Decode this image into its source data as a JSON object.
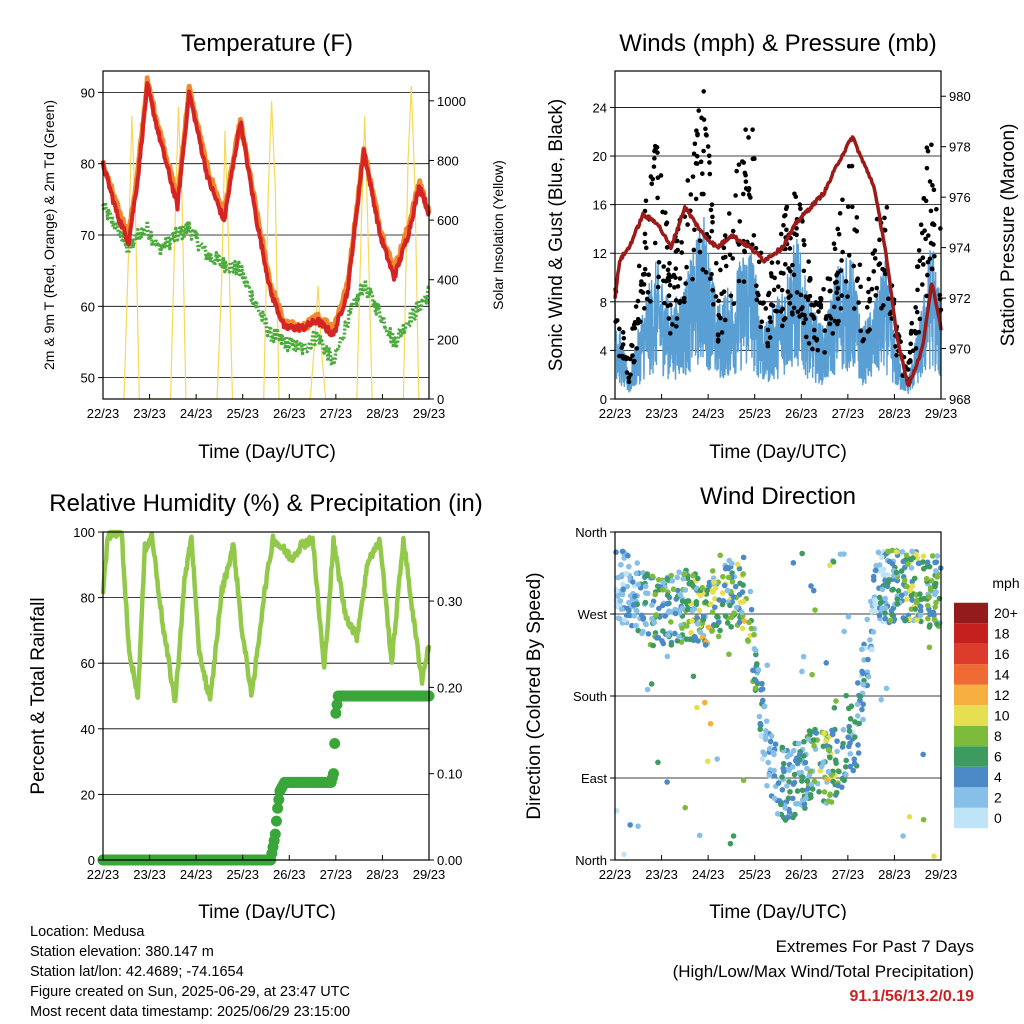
{
  "days": [
    "22/23",
    "23/23",
    "24/23",
    "25/23",
    "26/23",
    "27/23",
    "28/23",
    "29/23"
  ],
  "colors": {
    "temp2m": "#d42424",
    "temp9m": "#f08a2c",
    "dewpoint": "#4aaa3c",
    "solar": "#f5d95a",
    "gust": "#000000",
    "wind": "#5a9fd4",
    "pressure": "#9b1b1b",
    "humidity": "#92c94a",
    "precip": "#3aa63a"
  },
  "panels": {
    "temperature": {
      "title": "Temperature (F)",
      "xlabel": "Time (Day/UTC)",
      "ylabel_left": "2m & 9m T (Red, Orange) & 2m Td (Green)",
      "ylabel_right": "Solar Insolation (Yellow)",
      "left_ticks": [
        "50",
        "60",
        "70",
        "80",
        "90"
      ],
      "right_ticks": [
        "0",
        "200",
        "400",
        "600",
        "800",
        "1000"
      ]
    },
    "winds": {
      "title": "Winds (mph) & Pressure (mb)",
      "xlabel": "Time (Day/UTC)",
      "ylabel_left": "Sonic Wind & Gust (Blue, Black)",
      "ylabel_right": "Station Pressure (Maroon)",
      "left_ticks": [
        "0",
        "4",
        "8",
        "12",
        "16",
        "20",
        "24"
      ],
      "right_ticks": [
        "968",
        "970",
        "972",
        "974",
        "976",
        "978",
        "980"
      ]
    },
    "humidity": {
      "title": "Relative Humidity (%) & Precipitation (in)",
      "xlabel": "Time (Day/UTC)",
      "ylabel_left": "Percent & Total Rainfall",
      "left_ticks": [
        "0",
        "20",
        "40",
        "60",
        "80",
        "100"
      ],
      "right_ticks": [
        "0.00",
        "0.10",
        "0.20",
        "0.30"
      ]
    },
    "direction": {
      "title": "Wind Direction",
      "xlabel": "Time (Day/UTC)",
      "ylabel_left": "Direction (Colored By Speed)",
      "left_ticks": [
        "North",
        "East",
        "South",
        "West",
        "North"
      ],
      "legend_title": "mph",
      "legend_labels": [
        "0",
        "2",
        "4",
        "6",
        "8",
        "10",
        "12",
        "14",
        "16",
        "18",
        "20+"
      ],
      "legend_colors": [
        "#bfe3f7",
        "#86c0e8",
        "#4b8ac6",
        "#3e9b5f",
        "#7cbb3c",
        "#e6df52",
        "#f7b040",
        "#ef6b33",
        "#dd3b2b",
        "#c4201e",
        "#941b1b"
      ]
    }
  },
  "chart_data": [
    {
      "type": "line",
      "title": "Temperature (F)",
      "xlabel": "Time (Day/UTC)",
      "ylabel": "2m & 9m T (Red, Orange) & 2m Td (Green)",
      "y2label": "Solar Insolation (Yellow)",
      "x_days": [
        0,
        0.3,
        0.55,
        0.75,
        0.95,
        1.2,
        1.6,
        1.85,
        2.25,
        2.6,
        2.95,
        3.3,
        3.6,
        3.9,
        4.3,
        4.6,
        4.95,
        5.25,
        5.6,
        5.95,
        6.25,
        6.55,
        6.8,
        7.0
      ],
      "temp_2m": [
        80,
        73,
        69,
        78,
        91,
        84,
        74,
        90,
        78,
        72,
        86,
        72,
        62,
        57,
        57,
        58,
        56,
        62,
        82,
        70,
        64,
        70,
        77,
        73
      ],
      "temp_9m": [
        80,
        74,
        70,
        79,
        91.5,
        85,
        75,
        90.5,
        79,
        73,
        86,
        73,
        63,
        57.5,
        57,
        58.5,
        57,
        63,
        82,
        71,
        65,
        71,
        77.5,
        73
      ],
      "dewpoint_2m": [
        74,
        71,
        68,
        70,
        71,
        68,
        70,
        71,
        67,
        66,
        65,
        60,
        56,
        55,
        54,
        56,
        52,
        58,
        63,
        59,
        55,
        58,
        60,
        62
      ],
      "ylim": [
        47,
        93
      ],
      "solar_days": [
        0.45,
        0.55,
        0.62,
        0.7,
        0.78,
        1.45,
        1.55,
        1.62,
        1.7,
        1.78,
        2.45,
        2.55,
        2.62,
        2.7,
        2.78,
        3.45,
        3.55,
        3.62,
        3.7,
        3.78,
        4.45,
        4.55,
        4.62,
        4.7,
        4.78,
        5.45,
        5.55,
        5.62,
        5.7,
        5.78,
        6.45,
        6.55,
        6.62,
        6.7,
        6.78
      ],
      "solar_insolation": [
        0,
        500,
        950,
        600,
        0,
        0,
        600,
        980,
        650,
        0,
        0,
        400,
        900,
        500,
        0,
        0,
        700,
        1000,
        700,
        0,
        0,
        200,
        380,
        150,
        0,
        0,
        600,
        950,
        500,
        0,
        0,
        800,
        1050,
        700,
        0
      ],
      "y2lim": [
        0,
        1100
      ]
    },
    {
      "type": "line",
      "title": "Winds (mph) & Pressure (mb)",
      "xlabel": "Time (Day/UTC)",
      "ylabel": "Sonic Wind & Gust (Blue, Black)",
      "y2label": "Station Pressure (Maroon)",
      "x_days": [
        0,
        0.1,
        0.3,
        0.6,
        0.9,
        1.2,
        1.5,
        1.9,
        2.2,
        2.5,
        2.9,
        3.2,
        3.6,
        3.9,
        4.2,
        4.5,
        4.8,
        5.1,
        5.3,
        5.55,
        5.8,
        6.05,
        6.3,
        6.6,
        6.8,
        7.0
      ],
      "wind_mph": [
        5,
        3,
        1,
        4,
        6,
        4,
        5,
        8,
        4,
        5,
        7,
        3,
        5,
        7,
        4,
        3,
        6,
        6,
        3,
        4,
        6,
        2,
        1,
        4,
        7,
        4
      ],
      "gust_mph": [
        8,
        5,
        2,
        10,
        15,
        8,
        11,
        18,
        7,
        12,
        17,
        6,
        10,
        12,
        7,
        6,
        10,
        14,
        6,
        9,
        12,
        4,
        2,
        11,
        18,
        10
      ],
      "station_pressure_mb": [
        972,
        973.5,
        974,
        975.3,
        975,
        974,
        975.6,
        974.5,
        974,
        974.5,
        974,
        973.5,
        974,
        975,
        975.6,
        976.2,
        977.4,
        978.4,
        977.5,
        976.5,
        974,
        970.5,
        968.5,
        970,
        972.6,
        970.8
      ],
      "ylim": [
        0,
        27
      ],
      "y2lim": [
        968,
        981
      ]
    },
    {
      "type": "line",
      "title": "Relative Humidity (%) & Precipitation (in)",
      "xlabel": "Time (Day/UTC)",
      "ylabel": "Percent & Total Rainfall",
      "x_days": [
        0,
        0.1,
        0.2,
        0.4,
        0.55,
        0.75,
        0.9,
        1.05,
        1.3,
        1.55,
        1.75,
        1.9,
        2.05,
        2.3,
        2.55,
        2.8,
        3.0,
        3.2,
        3.45,
        3.65,
        3.85,
        4.05,
        4.25,
        4.5,
        4.75,
        4.95,
        5.2,
        5.45,
        5.7,
        5.95,
        6.2,
        6.45,
        6.7,
        6.85,
        7.0
      ],
      "relative_humidity": [
        82,
        98,
        100,
        100,
        65,
        50,
        95,
        99,
        70,
        48,
        85,
        99,
        65,
        48,
        82,
        96,
        68,
        50,
        80,
        98,
        95,
        92,
        96,
        98,
        58,
        97,
        75,
        68,
        92,
        97,
        60,
        98,
        70,
        55,
        66
      ],
      "ylim": [
        0,
        100
      ],
      "precip_days": [
        0,
        3.6,
        3.7,
        3.75,
        3.8,
        3.9,
        4.0,
        4.9,
        4.95,
        5.0,
        5.05,
        7.0
      ],
      "total_precip_in": [
        0,
        0,
        0.03,
        0.06,
        0.08,
        0.09,
        0.09,
        0.09,
        0.1,
        0.17,
        0.19,
        0.19
      ],
      "y2lim": [
        0,
        0.38
      ]
    },
    {
      "type": "scatter",
      "title": "Wind Direction",
      "xlabel": "Time (Day/UTC)",
      "ylabel": "Direction (Colored By Speed)",
      "y_categories": [
        "North",
        "East",
        "South",
        "West",
        "North"
      ],
      "x_days": [
        0.2,
        0.6,
        1.0,
        1.3,
        1.6,
        2.0,
        2.4,
        2.8,
        3.3,
        3.7,
        4.0,
        4.3,
        4.6,
        4.9,
        5.2,
        5.6,
        6.0,
        6.4,
        6.8
      ],
      "direction_deg": [
        300,
        280,
        270,
        275,
        280,
        275,
        290,
        290,
        100,
        80,
        90,
        110,
        100,
        120,
        140,
        300,
        300,
        300,
        295
      ],
      "speed_mph": [
        4,
        6,
        8,
        6,
        8,
        10,
        8,
        10,
        4,
        6,
        6,
        8,
        10,
        6,
        6,
        4,
        8,
        10,
        8
      ],
      "ylim_deg": [
        0,
        360
      ]
    }
  ],
  "footer": {
    "location": "Location: Medusa",
    "elevation": "Station elevation: 380.147 m",
    "latlon": "Station lat/lon: 42.4689; -74.1654",
    "created": "Figure created on Sun, 2025-06-29, at 23:47 UTC",
    "recent": "Most recent data timestamp: 2025/06/29 23:15:00"
  },
  "extremes": {
    "title": "Extremes For Past 7 Days",
    "subtitle": "(High/Low/Max Wind/Total Precipitation)",
    "values": "91.1/56/13.2/0.19"
  }
}
